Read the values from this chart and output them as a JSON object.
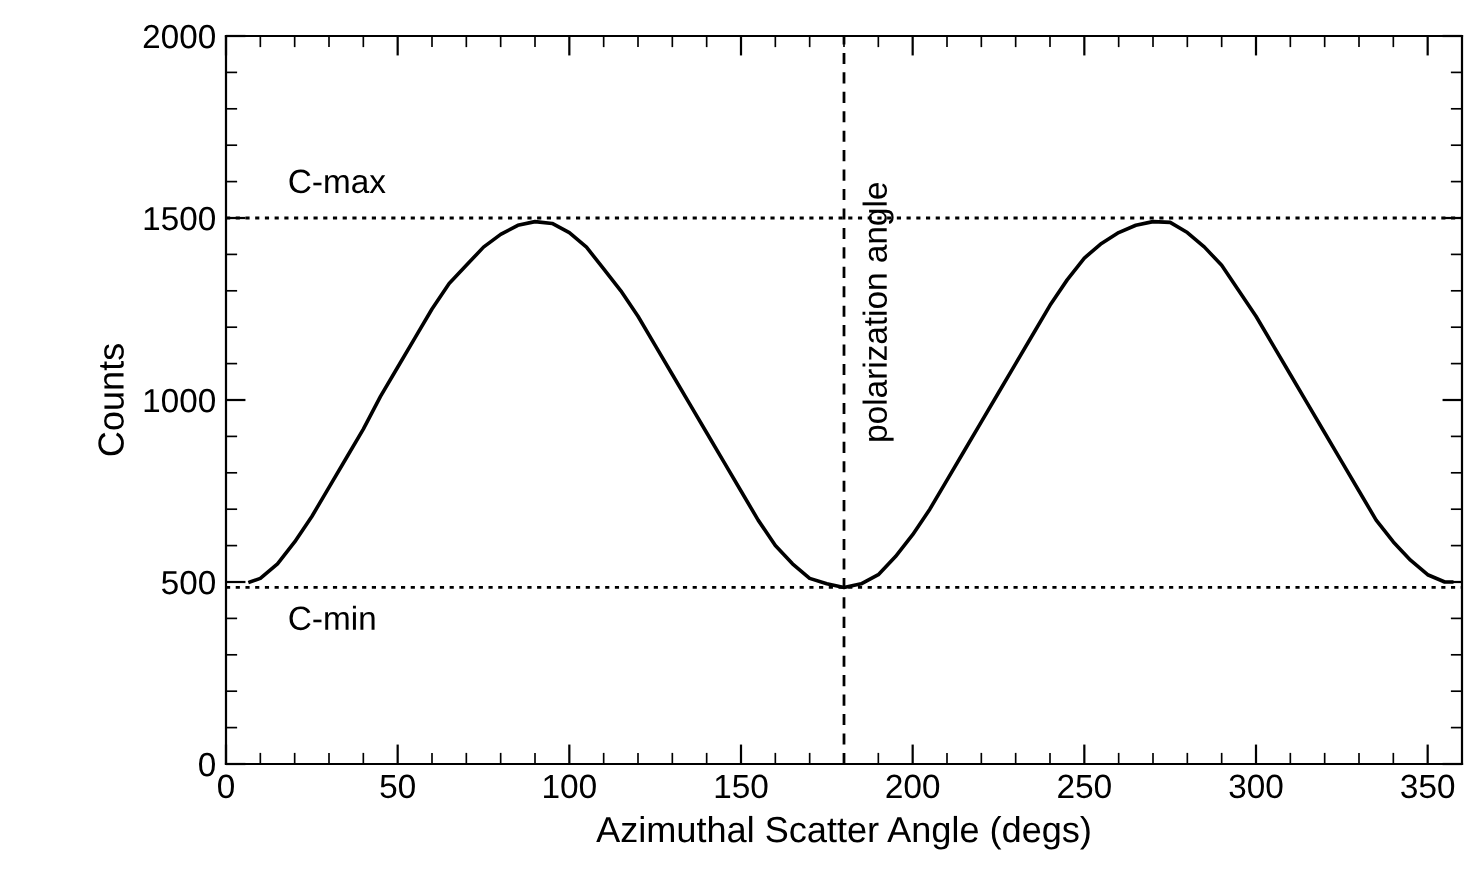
{
  "chart_data": {
    "type": "line",
    "xlabel": "Azimuthal Scatter Angle (degs)",
    "ylabel": "Counts",
    "xlim": [
      0,
      360
    ],
    "xticks": [
      0,
      50,
      100,
      150,
      200,
      250,
      300,
      350
    ],
    "ylim": [
      0,
      2000
    ],
    "yticks": [
      0,
      500,
      1000,
      1500,
      2000
    ],
    "grid": false,
    "marker": "none",
    "line_style": "solid",
    "series": [
      {
        "color": "#000000",
        "x": [
          7,
          10,
          15,
          20,
          25,
          30,
          35,
          40,
          45,
          50,
          55,
          60,
          65,
          70,
          75,
          80,
          85,
          90,
          95,
          100,
          105,
          110,
          115,
          120,
          125,
          130,
          135,
          140,
          145,
          150,
          155,
          160,
          165,
          170,
          175,
          180,
          185,
          190,
          195,
          200,
          205,
          210,
          215,
          220,
          225,
          230,
          235,
          240,
          245,
          250,
          255,
          260,
          265,
          270,
          275,
          280,
          285,
          290,
          295,
          300,
          305,
          310,
          315,
          320,
          325,
          330,
          335,
          340,
          345,
          350,
          355,
          357
        ],
        "values": [
          500,
          510,
          550,
          610,
          680,
          760,
          840,
          920,
          1010,
          1090,
          1170,
          1250,
          1320,
          1370,
          1420,
          1455,
          1480,
          1490,
          1485,
          1460,
          1420,
          1360,
          1300,
          1230,
          1150,
          1070,
          990,
          910,
          830,
          750,
          670,
          600,
          550,
          510,
          495,
          485,
          495,
          520,
          570,
          630,
          700,
          780,
          860,
          940,
          1020,
          1100,
          1180,
          1260,
          1330,
          1390,
          1430,
          1460,
          1480,
          1490,
          1488,
          1460,
          1420,
          1370,
          1300,
          1230,
          1150,
          1070,
          990,
          910,
          830,
          750,
          670,
          610,
          560,
          520,
          500,
          500
        ]
      }
    ],
    "ref_lines": [
      {
        "axis": "y",
        "value": 1500,
        "label": "C-max",
        "line_style": "dotted",
        "color": "#000000"
      },
      {
        "axis": "y",
        "value": 485,
        "label": "C-min",
        "line_style": "dotted",
        "color": "#000000"
      },
      {
        "axis": "x",
        "value": 180,
        "label": "polarization angle",
        "line_style": "dashed",
        "color": "#000000"
      }
    ]
  }
}
